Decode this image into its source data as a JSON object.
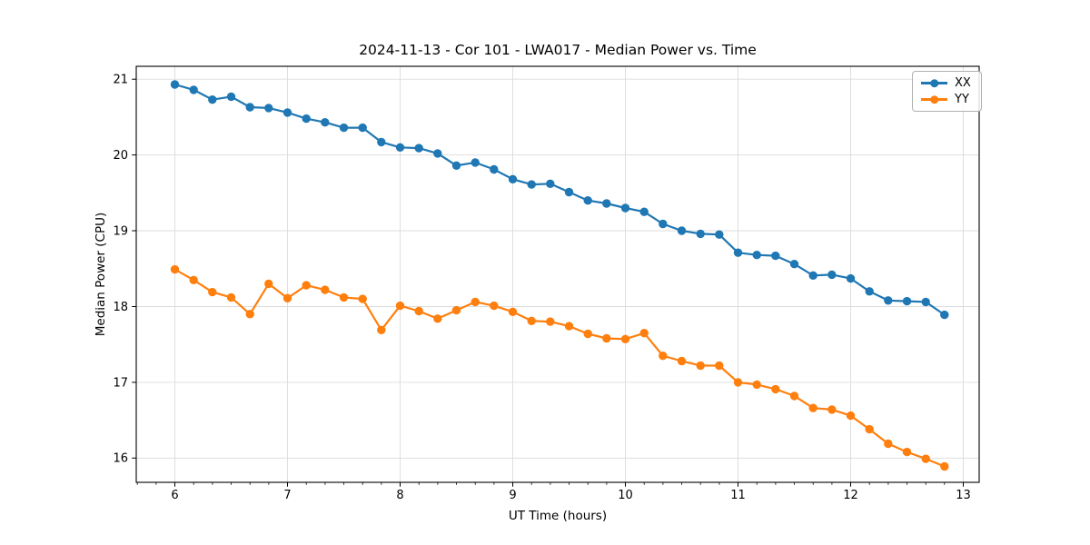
{
  "chart_data": {
    "type": "line",
    "title": "2024-11-13 - Cor 101 - LWA017 - Median Power vs. Time",
    "xlabel": "UT Time (hours)",
    "ylabel": "Median Power (CPU)",
    "xlim": [
      5.657,
      13.141
    ],
    "ylim": [
      15.68,
      21.17
    ],
    "xticks": [
      6,
      7,
      8,
      9,
      10,
      11,
      12,
      13
    ],
    "yticks": [
      16,
      17,
      18,
      19,
      20,
      21
    ],
    "x_minor_step": 0.16667,
    "grid": true,
    "grid_color": "#dcdcdc",
    "background": "#ffffff",
    "legend_position": "upper right",
    "x": [
      6.0,
      6.167,
      6.333,
      6.5,
      6.667,
      6.833,
      7.0,
      7.167,
      7.333,
      7.5,
      7.667,
      7.833,
      8.0,
      8.167,
      8.333,
      8.5,
      8.667,
      8.833,
      9.0,
      9.167,
      9.333,
      9.5,
      9.667,
      9.833,
      10.0,
      10.167,
      10.333,
      10.5,
      10.667,
      10.833,
      11.0,
      11.167,
      11.333,
      11.5,
      11.667,
      11.833,
      12.0,
      12.167,
      12.333,
      12.5,
      12.667,
      12.833
    ],
    "series": [
      {
        "name": "XX",
        "color": "#1f77b4",
        "values": [
          20.93,
          20.86,
          20.73,
          20.77,
          20.63,
          20.62,
          20.56,
          20.48,
          20.43,
          20.36,
          20.36,
          20.17,
          20.1,
          20.09,
          20.02,
          19.86,
          19.9,
          19.81,
          19.68,
          19.61,
          19.62,
          19.51,
          19.4,
          19.36,
          19.3,
          19.25,
          19.09,
          19.0,
          18.96,
          18.95,
          18.71,
          18.68,
          18.67,
          18.56,
          18.41,
          18.42,
          18.37,
          18.2,
          18.08,
          18.07,
          18.06,
          17.89
        ]
      },
      {
        "name": "YY",
        "color": "#ff7f0e",
        "values": [
          18.49,
          18.35,
          18.19,
          18.12,
          17.9,
          18.3,
          18.11,
          18.28,
          18.22,
          18.12,
          18.1,
          17.69,
          18.01,
          17.94,
          17.84,
          17.95,
          18.06,
          18.01,
          17.93,
          17.81,
          17.8,
          17.74,
          17.64,
          17.58,
          17.57,
          17.65,
          17.35,
          17.28,
          17.22,
          17.22,
          17.0,
          16.97,
          16.91,
          16.82,
          16.66,
          16.64,
          16.56,
          16.38,
          16.19,
          16.08,
          15.99,
          15.89
        ]
      }
    ]
  }
}
